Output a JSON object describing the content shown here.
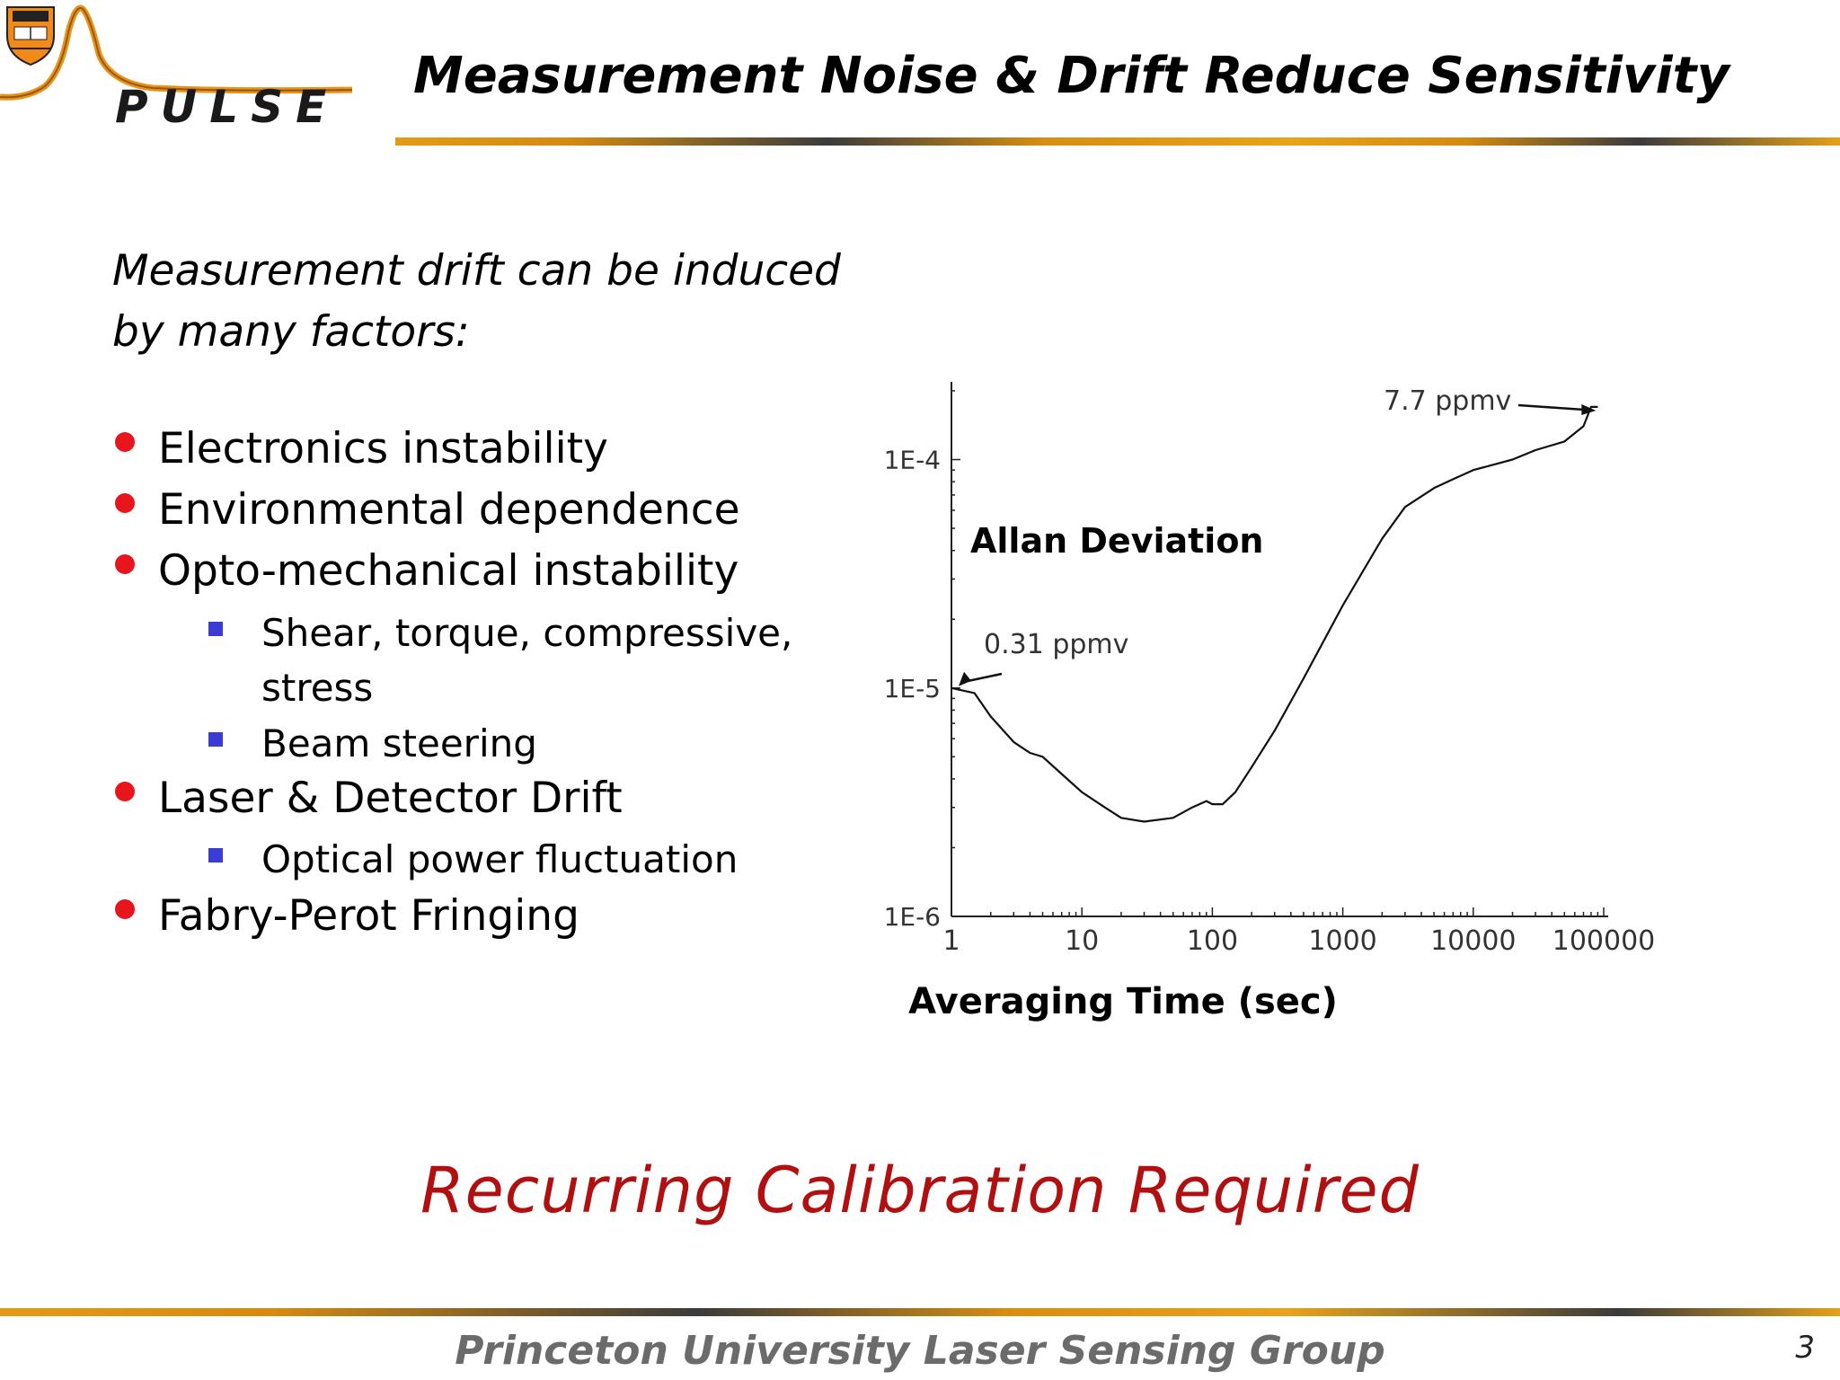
{
  "header": {
    "logo_text": "PULSE",
    "title": "Measurement Noise & Drift Reduce Sensitivity"
  },
  "content": {
    "intro": "Measurement drift can be induced by many factors:",
    "bullets": [
      {
        "text": "Electronics instability",
        "level": 1
      },
      {
        "text": "Environmental dependence",
        "level": 1
      },
      {
        "text": "Opto-mechanical instability",
        "level": 1
      },
      {
        "text": "Shear, torque, compressive,",
        "level": 2
      },
      {
        "text": "stress",
        "level": 2
      },
      {
        "text": "Beam steering",
        "level": 2
      },
      {
        "text": "Laser & Detector Drift",
        "level": 1
      },
      {
        "text": "Optical power fluctuation",
        "level": 2
      },
      {
        "text": "Fabry-Perot Fringing",
        "level": 1
      }
    ]
  },
  "callout": "Recurring Calibration Required",
  "footer": {
    "organization": "Princeton University Laser Sensing Group",
    "page_number": "3"
  },
  "colors": {
    "bullet": "#e8161c",
    "sub_bullet": "#3b3bd6",
    "callout": "#b01010",
    "rule_gold": "#e39b17",
    "rule_dark": "#3b3b3b",
    "footer_text": "#6b6b6b"
  },
  "chart_data": {
    "type": "line",
    "title": "Allan Deviation",
    "xlabel": "Averaging Time (sec)",
    "ylabel": "",
    "x_scale": "log",
    "y_scale": "log",
    "xlim": [
      1,
      100000
    ],
    "ylim": [
      1e-06,
      0.0002
    ],
    "x_ticks": [
      "1",
      "10",
      "100",
      "1000",
      "10000",
      "100000"
    ],
    "y_ticks": [
      "1E-6",
      "1E-5",
      "1E-4"
    ],
    "grid": false,
    "series": [
      {
        "x": [
          1,
          1.5,
          2,
          3,
          4,
          5,
          7,
          10,
          15,
          20,
          30,
          50,
          70,
          90,
          100,
          120,
          150,
          200,
          300,
          500,
          1000,
          2000,
          3000,
          5000,
          7000,
          10000,
          20000,
          30000,
          50000,
          70000,
          80000,
          90000
        ],
        "y": [
          1e-05,
          9.5e-06,
          7.5e-06,
          5.8e-06,
          5.2e-06,
          5e-06,
          4.2e-06,
          3.5e-06,
          3e-06,
          2.7e-06,
          2.6e-06,
          2.7e-06,
          3e-06,
          3.2e-06,
          3.1e-06,
          3.1e-06,
          3.5e-06,
          4.5e-06,
          6.5e-06,
          1.1e-05,
          2.3e-05,
          4.5e-05,
          6.2e-05,
          7.5e-05,
          8.2e-05,
          9e-05,
          0.0001,
          0.00011,
          0.00012,
          0.00014,
          0.00017,
          0.00017
        ]
      }
    ],
    "annotations": [
      {
        "text": "0.31 ppmv",
        "x": 1.1,
        "y": 1e-05
      },
      {
        "text": "7.7 ppmv",
        "x": 90000,
        "y": 0.00017
      }
    ]
  }
}
